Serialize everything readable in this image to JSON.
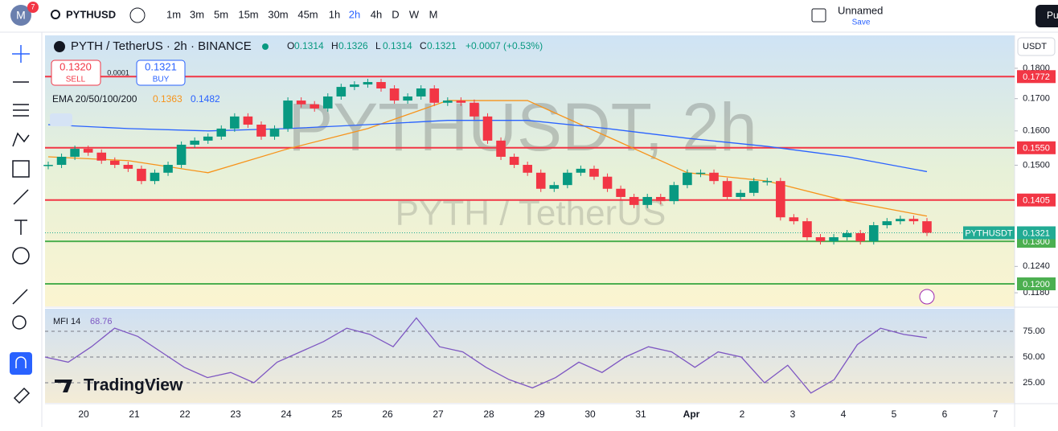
{
  "topbar": {
    "avatar": "M",
    "badge": "7",
    "symbol": "PYTHUSD",
    "intervals": [
      "1m",
      "3m",
      "5m",
      "15m",
      "30m",
      "45m",
      "1h",
      "2h",
      "4h",
      "D",
      "W",
      "M"
    ],
    "active_interval": 7,
    "layout_name": "Unnamed",
    "save": "Save",
    "publish": "Pu"
  },
  "legend": {
    "title": "PYTH / TetherUS · 2h · BINANCE",
    "ohlc": [
      {
        "k": "O",
        "v": "0.1314"
      },
      {
        "k": "H",
        "v": "0.1326"
      },
      {
        "k": "L",
        "v": "0.1314"
      },
      {
        "k": "C",
        "v": "0.1321"
      }
    ],
    "change": "+0.0007 (+0.53%)",
    "sell_price": "0.1320",
    "sell": "SELL",
    "spread": "0.0001",
    "buy_price": "0.1321",
    "buy": "BUY",
    "ema_title": "EMA 20/50/100/200",
    "ema_values": [
      {
        "v": "0.1363",
        "color": "#f7931a"
      },
      {
        "v": "0.1482",
        "color": "#2962ff"
      }
    ]
  },
  "watermark": {
    "big": "PYTHUSDT, 2h",
    "small": "PYTH / TetherUS"
  },
  "currency": "USDT",
  "branding": "TradingView",
  "chart_data": {
    "type": "candlestick",
    "closes": [
      0.1501,
      0.1524,
      0.1547,
      0.1536,
      0.1513,
      0.1501,
      0.149,
      0.1456,
      0.1479,
      0.1501,
      0.1559,
      0.1571,
      0.1583,
      0.1607,
      0.1644,
      0.1619,
      0.1583,
      0.1607,
      0.1694,
      0.1682,
      0.1669,
      0.1707,
      0.1738,
      0.1746,
      0.1754,
      0.1733,
      0.1694,
      0.1707,
      0.1733,
      0.1687,
      0.1694,
      0.1687,
      0.1644,
      0.1571,
      0.1524,
      0.1501,
      0.1479,
      0.1435,
      0.1445,
      0.1479,
      0.149,
      0.1468,
      0.1435,
      0.1413,
      0.1392,
      0.1413,
      0.1402,
      0.1445,
      0.1479,
      0.1479,
      0.1456,
      0.1413,
      0.1424,
      0.1456,
      0.1456,
      0.136,
      0.135,
      0.131,
      0.13,
      0.131,
      0.132,
      0.13,
      0.134,
      0.135,
      0.1356,
      0.135,
      0.1321
    ],
    "up_color": "#089981",
    "down_color": "#f23645",
    "ema_lines": [
      {
        "color": "#f7931a",
        "values": [
          0.1524,
          0.1513,
          0.1479,
          0.1547,
          0.1607,
          0.1694,
          0.1694,
          0.1583,
          0.1479,
          0.1456,
          0.1402,
          0.1363
        ]
      },
      {
        "color": "#2962ff",
        "values": [
          0.1619,
          0.1607,
          0.16,
          0.1607,
          0.1619,
          0.1632,
          0.1632,
          0.1607,
          0.1578,
          0.1554,
          0.1524,
          0.1482
        ]
      }
    ],
    "ylim": [
      0.1152,
      0.1912
    ],
    "log_scale": true,
    "yticks": [
      {
        "value": 0.18,
        "label": "0.1800"
      },
      {
        "value": 0.17,
        "label": "0.1700"
      },
      {
        "value": 0.16,
        "label": "0.1600"
      },
      {
        "value": 0.15,
        "label": "0.1500"
      },
      {
        "value": 0.124,
        "label": "0.1240"
      },
      {
        "value": 0.118,
        "label": "0.1180"
      }
    ],
    "levels": [
      {
        "value": 0.1772,
        "label": "0.1772",
        "color": "#f23645"
      },
      {
        "value": 0.155,
        "label": "0.1550",
        "color": "#f23645"
      },
      {
        "value": 0.1405,
        "label": "0.1405",
        "color": "#f23645"
      },
      {
        "value": 0.13,
        "label": "0.1300",
        "color": "#4caf50"
      },
      {
        "value": 0.12,
        "label": "0.1200",
        "color": "#4caf50"
      }
    ],
    "last_price": {
      "value": 0.1321,
      "label": "0.1321",
      "symbol": "PYTHUSDT",
      "color": "#22ab94"
    },
    "x_labels": [
      "20",
      "21",
      "22",
      "23",
      "24",
      "25",
      "26",
      "27",
      "28",
      "29",
      "30",
      "31",
      "Apr",
      "2",
      "3",
      "4",
      "5",
      "6",
      "7"
    ]
  },
  "mfi": {
    "type": "line",
    "title": "MFI 14",
    "last": "68.76",
    "color": "#7e57c2",
    "values": [
      50,
      45,
      60,
      78,
      70,
      55,
      40,
      30,
      35,
      25,
      45,
      55,
      65,
      78,
      72,
      60,
      88,
      60,
      55,
      40,
      28,
      20,
      30,
      45,
      35,
      50,
      60,
      55,
      40,
      55,
      50,
      25,
      42,
      15,
      28,
      62,
      78,
      72,
      68.76
    ],
    "ylim": [
      6.25,
      96.1
    ],
    "yticks": [
      {
        "value": 75,
        "label": "75.00"
      },
      {
        "value": 50,
        "label": "50.00"
      },
      {
        "value": 25,
        "label": "25.00"
      }
    ]
  }
}
